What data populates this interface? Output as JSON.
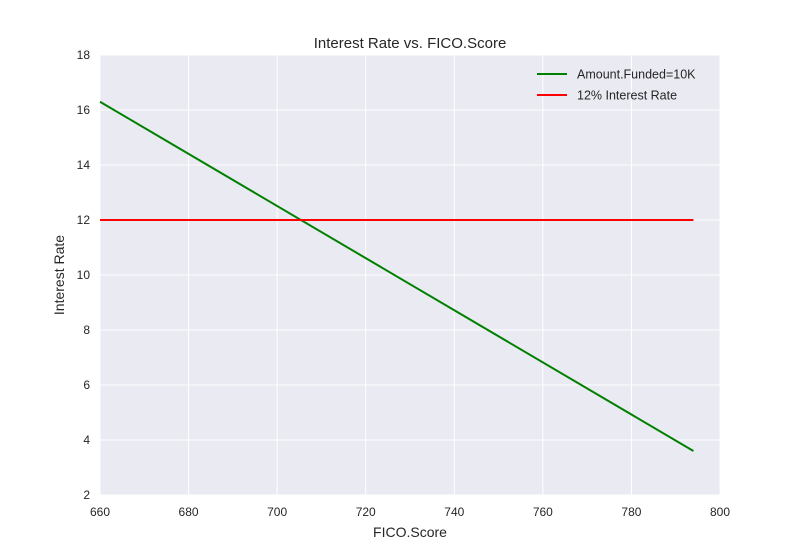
{
  "chart_data": {
    "type": "line",
    "title": "Interest Rate vs. FICO.Score",
    "xlabel": "FICO.Score",
    "ylabel": "Interest Rate",
    "xlim": [
      660,
      800
    ],
    "ylim": [
      2,
      18
    ],
    "xticks": [
      660,
      680,
      700,
      720,
      740,
      760,
      780,
      800
    ],
    "yticks": [
      2,
      4,
      6,
      8,
      10,
      12,
      14,
      16,
      18
    ],
    "grid": true,
    "legend_position": "top-right",
    "series": [
      {
        "name": "Amount.Funded=10K",
        "color": "#008000",
        "x": [
          660,
          794
        ],
        "y": [
          16.3,
          3.6
        ]
      },
      {
        "name": "12% Interest Rate",
        "color": "#ff0000",
        "x": [
          660,
          794
        ],
        "y": [
          12,
          12
        ]
      }
    ],
    "plot_background": "#eaeaf2",
    "grid_color": "#ffffff"
  }
}
